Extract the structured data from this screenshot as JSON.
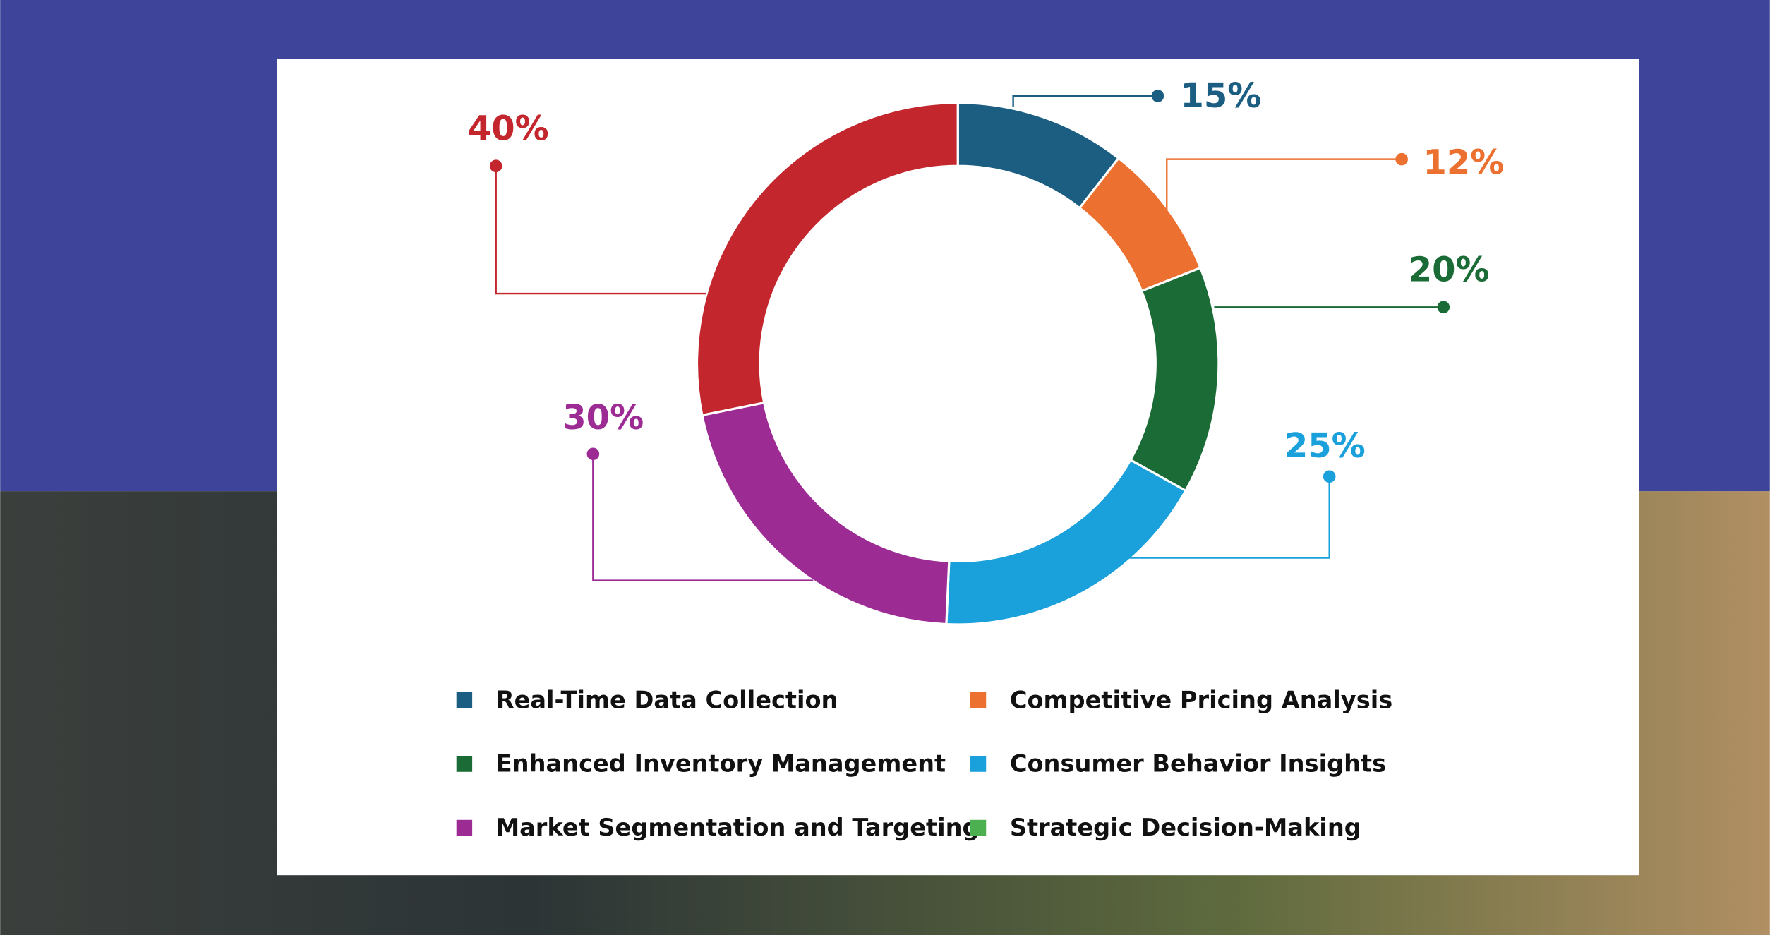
{
  "chart_data": {
    "type": "donut",
    "categories": [
      "Real-Time Data Collection",
      "Competitive Pricing Analysis",
      "Enhanced Inventory Management",
      "Consumer Behavior Insights",
      "Market Segmentation and Targeting",
      "Strategic Decision-Making"
    ],
    "values": [
      15,
      12,
      20,
      25,
      30,
      null
    ],
    "value_labels": [
      "15%",
      "12%",
      "20%",
      "25%",
      "30%",
      null
    ],
    "colors": [
      "#1b5e82",
      "#ec7130",
      "#1a6b35",
      "#1aa0db",
      "#9c2b94",
      "#4caf50"
    ],
    "extra": {
      "values": [
        40
      ],
      "value_labels": [
        "40%"
      ],
      "color": "#c3262c"
    }
  }
}
